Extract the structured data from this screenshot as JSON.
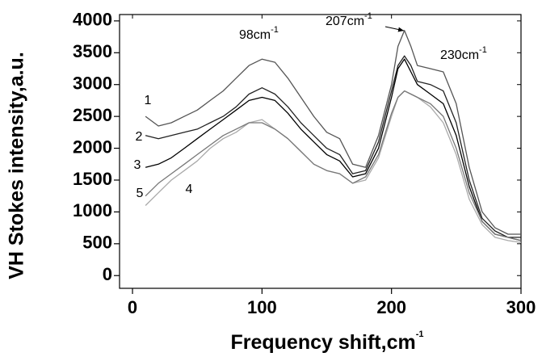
{
  "chart_data": {
    "type": "line",
    "x_label": {
      "text": "Frequency shift,cm",
      "sup": "-1"
    },
    "y_label": "VH Stokes intensity,a.u.",
    "annotations": [
      {
        "text": "98cm",
        "sup": "-1"
      },
      {
        "text": "207cm",
        "sup": "-1"
      },
      {
        "text": "230cm",
        "sup": "-1"
      }
    ],
    "x": [
      10,
      20,
      30,
      40,
      50,
      60,
      70,
      80,
      90,
      100,
      110,
      120,
      130,
      140,
      150,
      160,
      170,
      180,
      190,
      200,
      205,
      210,
      215,
      220,
      230,
      240,
      250,
      260,
      270,
      280,
      290,
      300
    ],
    "series": [
      {
        "name": "1",
        "color": "#555555",
        "values": [
          2500,
          2350,
          2400,
          2500,
          2600,
          2750,
          2900,
          3100,
          3300,
          3400,
          3350,
          3100,
          2800,
          2500,
          2250,
          2150,
          1750,
          1700,
          2200,
          3000,
          3600,
          3850,
          3600,
          3300,
          3250,
          3200,
          2700,
          1700,
          1000,
          750,
          650,
          650
        ]
      },
      {
        "name": "2",
        "color": "#222222",
        "values": [
          2200,
          2150,
          2200,
          2250,
          2300,
          2400,
          2500,
          2650,
          2850,
          2950,
          2850,
          2650,
          2400,
          2200,
          2000,
          1900,
          1600,
          1650,
          2100,
          2900,
          3300,
          3450,
          3300,
          3050,
          3000,
          2900,
          2400,
          1500,
          900,
          700,
          600,
          600
        ]
      },
      {
        "name": "3",
        "color": "#000000",
        "values": [
          1700,
          1750,
          1850,
          2000,
          2150,
          2300,
          2450,
          2600,
          2750,
          2800,
          2750,
          2550,
          2300,
          2100,
          1900,
          1800,
          1550,
          1600,
          2000,
          2800,
          3250,
          3400,
          3200,
          3000,
          2850,
          2700,
          2200,
          1400,
          850,
          650,
          600,
          550
        ]
      },
      {
        "name": "4",
        "color": "#aaaaaa",
        "values": [
          1100,
          1300,
          1500,
          1650,
          1800,
          2000,
          2150,
          2250,
          2400,
          2450,
          2300,
          2150,
          1950,
          1750,
          1650,
          1600,
          1450,
          1500,
          1850,
          2500,
          2800,
          2900,
          2850,
          2800,
          2650,
          2400,
          1900,
          1200,
          800,
          600,
          550,
          520
        ]
      },
      {
        "name": "5",
        "color": "#777777",
        "values": [
          1250,
          1450,
          1600,
          1750,
          1900,
          2050,
          2200,
          2300,
          2400,
          2400,
          2300,
          2150,
          1950,
          1750,
          1650,
          1600,
          1450,
          1550,
          1900,
          2550,
          2800,
          2900,
          2850,
          2800,
          2700,
          2500,
          2000,
          1300,
          850,
          650,
          600,
          550
        ]
      }
    ],
    "xlim": [
      -10,
      300
    ],
    "xticks": [
      0,
      100,
      200,
      300
    ],
    "ylim": [
      -200,
      4100
    ],
    "yticks": [
      0,
      500,
      1000,
      1500,
      2000,
      2500,
      3000,
      3500,
      4000
    ]
  }
}
